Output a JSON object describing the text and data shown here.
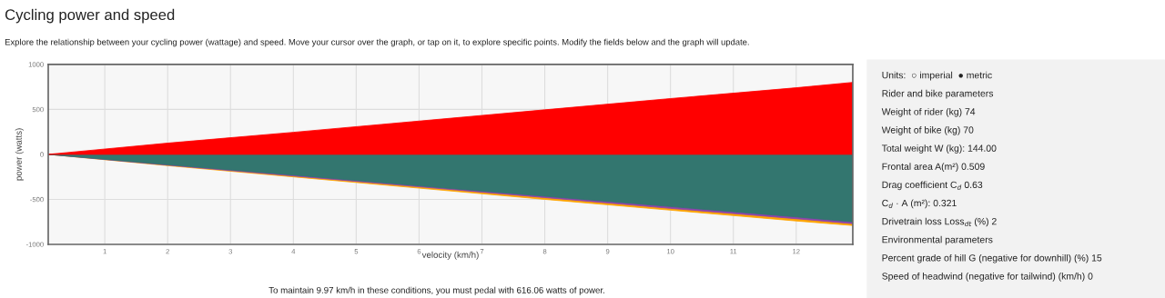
{
  "chart_data": [
    {
      "type": "area",
      "title": "Cycling power and speed",
      "subtitle": "Explore the relationship between your cycling power (wattage) and speed. Move your cursor over the graph, or tap on it, to explore specific points. Modify the fields below and the graph will update.",
      "xlabel": "velocity (km/h)",
      "ylabel": "power (watts)",
      "x": [
        0.1,
        2,
        4,
        6,
        8,
        10,
        12,
        12.9
      ],
      "series": [
        {
          "color": "#ffa500",
          "values": [
            0,
            -125,
            -250,
            -375,
            -500,
            -620,
            -740,
            -790
          ]
        },
        {
          "color": "#8e44ad",
          "values": [
            0,
            -120,
            -240,
            -360,
            -480,
            -600,
            -715,
            -770
          ]
        },
        {
          "color": "#33766f",
          "values": [
            0,
            -115,
            -230,
            -350,
            -465,
            -580,
            -695,
            -750
          ]
        },
        {
          "color": "#ff0000",
          "values": [
            0,
            125,
            245,
            370,
            495,
            620,
            740,
            800
          ]
        }
      ],
      "xlim": [
        0.1,
        12.9
      ],
      "ylim": [
        -1000,
        1000
      ],
      "xticks": [
        1,
        2,
        3,
        4,
        5,
        6,
        7,
        8,
        9,
        10,
        11,
        12
      ],
      "yticks": [
        -1000,
        -500,
        0,
        500,
        1000
      ],
      "grid": true,
      "annotations": [
        "To maintain 9.97 km/h in these conditions, you must pedal with 616.06 watts of power."
      ]
    },
    {
      "type": "other",
      "annotations": [
        "Units:  ○ imperial  ● metric",
        "Rider and bike parameters",
        "Weight of rider (kg) 74",
        "Weight of bike (kg) 70",
        "Total weight W (kg): 144.00",
        "Frontal area A(m²) 0.509",
        "Drag coefficient C$_{d}$ 0.63",
        "C$_{d}$ · A (m²): 0.321",
        "Drivetrain loss Loss$_{dt}$ (%) 2",
        "Environmental parameters",
        "Percent grade of hill G (negative for downhill) (%) 15",
        "Speed of headwind (negative for tailwind) (km/h) 0"
      ]
    }
  ]
}
